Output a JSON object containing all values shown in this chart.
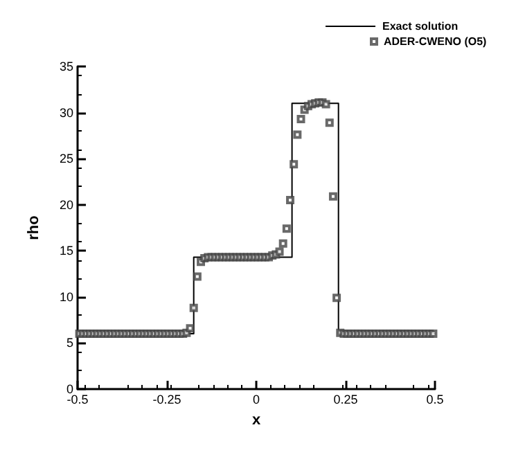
{
  "chart_data": {
    "type": "line",
    "xlabel": "x",
    "ylabel": "rho",
    "xlim": [
      -0.5,
      0.5
    ],
    "ylim": [
      0,
      35
    ],
    "xticks": [
      -0.5,
      -0.25,
      0,
      0.25,
      0.5
    ],
    "yticks": [
      0,
      5,
      10,
      15,
      20,
      25,
      30,
      35
    ],
    "grid": false,
    "legend": "top right",
    "series": [
      {
        "name": "Exact solution",
        "color": "#000000",
        "marker": "none",
        "line_style": "solid",
        "x": [
          -0.5,
          -0.175,
          -0.175,
          0.1,
          0.1,
          0.23,
          0.23,
          0.5
        ],
        "values": [
          6,
          6,
          14.3,
          14.3,
          31,
          31,
          6,
          6
        ]
      },
      {
        "name": "ADER-CWENO (O5)",
        "type": "scatter",
        "color": "#444444",
        "marker": "square",
        "x": [
          -0.495,
          -0.485,
          -0.475,
          -0.465,
          -0.455,
          -0.445,
          -0.435,
          -0.425,
          -0.415,
          -0.405,
          -0.395,
          -0.385,
          -0.375,
          -0.365,
          -0.355,
          -0.345,
          -0.335,
          -0.325,
          -0.315,
          -0.305,
          -0.295,
          -0.285,
          -0.275,
          -0.265,
          -0.255,
          -0.245,
          -0.235,
          -0.225,
          -0.215,
          -0.205,
          -0.195,
          -0.185,
          -0.175,
          -0.165,
          -0.155,
          -0.145,
          -0.135,
          -0.125,
          -0.115,
          -0.105,
          -0.095,
          -0.085,
          -0.075,
          -0.065,
          -0.055,
          -0.045,
          -0.035,
          -0.025,
          -0.015,
          -0.005,
          0.005,
          0.015,
          0.025,
          0.035,
          0.045,
          0.055,
          0.065,
          0.075,
          0.085,
          0.095,
          0.105,
          0.115,
          0.125,
          0.135,
          0.145,
          0.155,
          0.165,
          0.175,
          0.185,
          0.195,
          0.205,
          0.215,
          0.225,
          0.235,
          0.245,
          0.255,
          0.265,
          0.275,
          0.285,
          0.295,
          0.305,
          0.315,
          0.325,
          0.335,
          0.345,
          0.355,
          0.365,
          0.375,
          0.385,
          0.395,
          0.405,
          0.415,
          0.425,
          0.435,
          0.445,
          0.455,
          0.465,
          0.475,
          0.485,
          0.495
        ],
        "values": [
          6,
          6,
          6,
          6,
          6,
          6,
          6,
          6,
          6,
          6,
          6,
          6,
          6,
          6,
          6,
          6,
          6,
          6,
          6,
          6,
          6,
          6,
          6,
          6,
          6,
          6,
          6,
          6,
          6,
          6,
          6.1,
          6.6,
          8.8,
          12.2,
          13.8,
          14.2,
          14.3,
          14.3,
          14.3,
          14.3,
          14.3,
          14.3,
          14.3,
          14.3,
          14.3,
          14.3,
          14.3,
          14.3,
          14.3,
          14.3,
          14.3,
          14.3,
          14.3,
          14.3,
          14.5,
          14.6,
          14.9,
          15.8,
          17.4,
          20.5,
          24.4,
          27.6,
          29.3,
          30.3,
          30.7,
          30.9,
          31,
          31.1,
          31.1,
          30.9,
          28.9,
          20.9,
          9.9,
          6.1,
          6,
          6,
          6,
          6,
          6,
          6,
          6,
          6,
          6,
          6,
          6,
          6,
          6,
          6,
          6,
          6,
          6,
          6,
          6,
          6,
          6,
          6,
          6,
          6,
          6,
          6
        ]
      }
    ]
  }
}
